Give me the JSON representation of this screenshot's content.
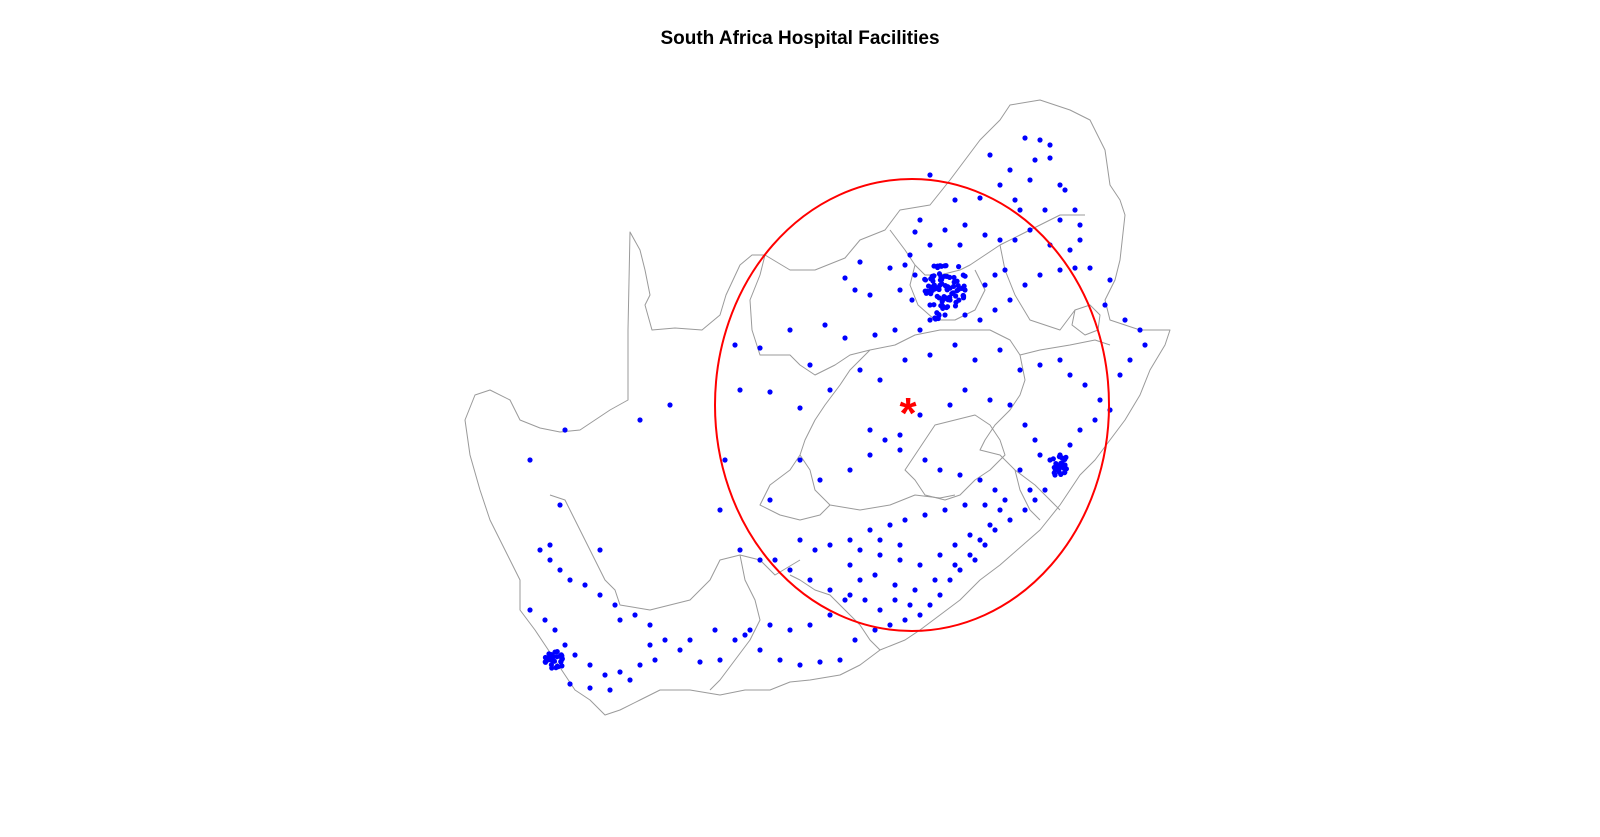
{
  "title": "South Africa Hospital Facilities",
  "colors": {
    "borders": "#9a9a9a",
    "facility_points": "#0000ff",
    "radius_circle": "#ff0000",
    "centroid_marker": "#ff0000"
  },
  "legend": null,
  "axes": "none",
  "marker_glyph": "*",
  "layers": [
    "province-borders",
    "hospital-facility-points",
    "radius-circle",
    "centroid-marker"
  ]
}
